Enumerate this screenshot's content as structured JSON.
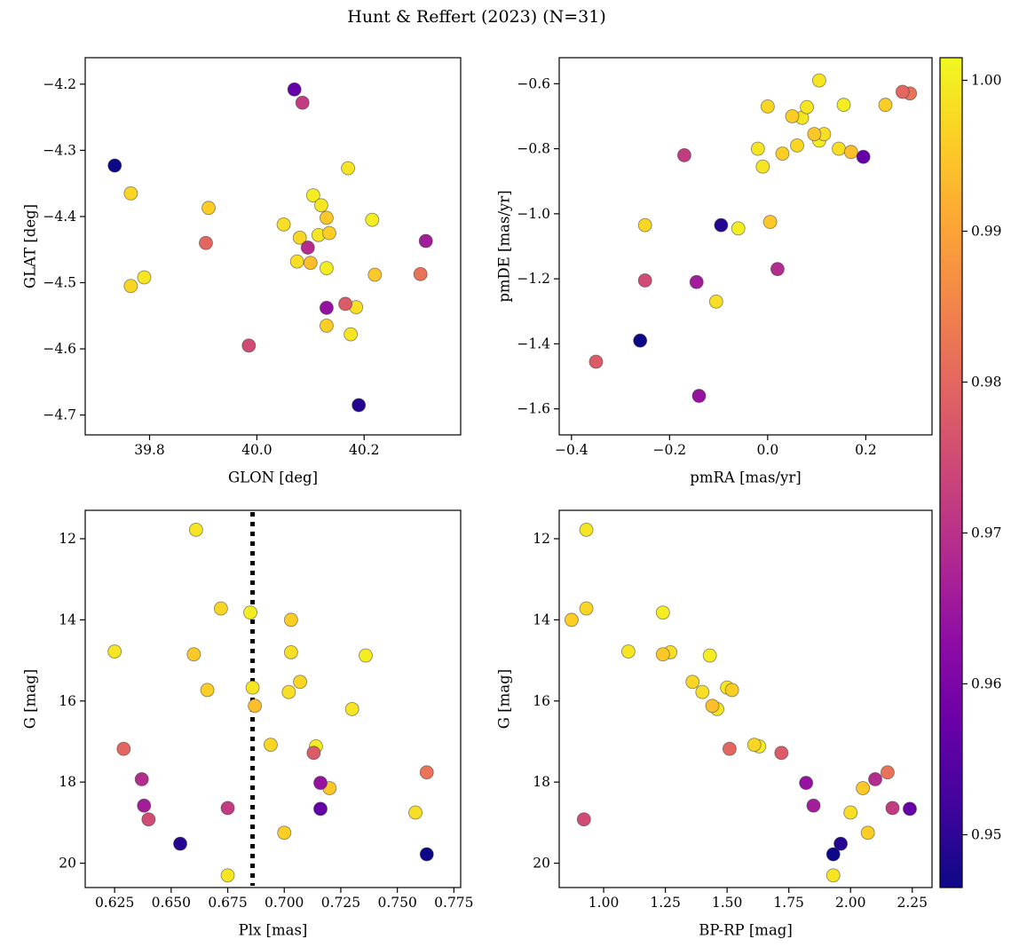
{
  "chart_data": {
    "type": "scatter",
    "title": "Hunt & Reffert (2023) (N=31)",
    "n_members": 31,
    "color_scale": {
      "colormap": "plasma",
      "vmin": 0.9465,
      "vmax": 1.0015,
      "tick_values": [
        1.0,
        0.99,
        0.98,
        0.97,
        0.96,
        0.95
      ],
      "tick_labels": [
        "1.00",
        "0.99",
        "0.98",
        "0.97",
        "0.96",
        "0.95"
      ]
    },
    "colormap_stops": [
      [
        0.0,
        "#0d0887"
      ],
      [
        0.1,
        "#41049d"
      ],
      [
        0.2,
        "#6a00a8"
      ],
      [
        0.3,
        "#8f0da4"
      ],
      [
        0.4,
        "#b12a90"
      ],
      [
        0.5,
        "#cc4778"
      ],
      [
        0.6,
        "#e16462"
      ],
      [
        0.7,
        "#f2844b"
      ],
      [
        0.8,
        "#fca636"
      ],
      [
        0.9,
        "#fcce25"
      ],
      [
        1.0,
        "#f0f921"
      ]
    ],
    "panels": [
      {
        "id": "glat-vs-glon",
        "xlabel": "GLON [deg]",
        "ylabel": "GLAT [deg]",
        "xkey": "glon",
        "ykey": "glat",
        "xlim": [
          39.68,
          40.38
        ],
        "ylim": [
          -4.16,
          -4.73
        ],
        "xticks": [
          39.8,
          40.0,
          40.2
        ],
        "xtick_labels": [
          "39.8",
          "40.0",
          "40.2"
        ],
        "yticks": [
          -4.2,
          -4.3,
          -4.4,
          -4.5,
          -4.6,
          -4.7
        ],
        "ytick_labels": [
          "−4.2",
          "−4.3",
          "−4.4",
          "−4.5",
          "−4.6",
          "−4.7"
        ]
      },
      {
        "id": "pmde-vs-pmra",
        "xlabel": "pmRA [mas/yr]",
        "ylabel": "pmDE [mas/yr]",
        "xkey": "pmra",
        "ykey": "pmde",
        "xlim": [
          -0.425,
          0.335
        ],
        "ylim": [
          -0.52,
          -1.68
        ],
        "xticks": [
          -0.4,
          -0.2,
          0.0,
          0.2
        ],
        "xtick_labels": [
          "−0.4",
          "−0.2",
          "0.0",
          "0.2"
        ],
        "yticks": [
          -0.6,
          -0.8,
          -1.0,
          -1.2,
          -1.4,
          -1.6
        ],
        "ytick_labels": [
          "−0.6",
          "−0.8",
          "−1.0",
          "−1.2",
          "−1.4",
          "−1.6"
        ]
      },
      {
        "id": "g-vs-plx",
        "xlabel": "Plx [mas]",
        "ylabel": "G [mag]",
        "xkey": "plx",
        "ykey": "g",
        "xlim": [
          0.612,
          0.778
        ],
        "ylim": [
          11.3,
          20.6
        ],
        "xticks": [
          0.625,
          0.65,
          0.675,
          0.7,
          0.725,
          0.75,
          0.775
        ],
        "xtick_labels": [
          "0.625",
          "0.650",
          "0.675",
          "0.700",
          "0.725",
          "0.750",
          "0.775"
        ],
        "yticks": [
          12,
          14,
          16,
          18,
          20
        ],
        "ytick_labels": [
          "12",
          "14",
          "16",
          "18",
          "20"
        ],
        "vline_x": 0.686,
        "vline_style": "dotted-black"
      },
      {
        "id": "g-vs-bprp",
        "xlabel": "BP-RP [mag]",
        "ylabel": "G [mag]",
        "xkey": "bprp",
        "ykey": "g",
        "xlim": [
          0.82,
          2.33
        ],
        "ylim": [
          11.3,
          20.6
        ],
        "xticks": [
          1.0,
          1.25,
          1.5,
          1.75,
          2.0,
          2.25
        ],
        "xtick_labels": [
          "1.00",
          "1.25",
          "1.50",
          "1.75",
          "2.00",
          "2.25"
        ],
        "yticks": [
          12,
          14,
          16,
          18,
          20
        ],
        "ytick_labels": [
          "12",
          "14",
          "16",
          "18",
          "20"
        ]
      }
    ],
    "stars": [
      {
        "glon": 39.735,
        "glat": -4.323,
        "pmra": -0.26,
        "pmde": -1.39,
        "plx": 0.763,
        "g": 19.78,
        "bprp": 1.93,
        "p": 0.945
      },
      {
        "glon": 40.19,
        "glat": -4.685,
        "pmra": -0.095,
        "pmde": -1.035,
        "plx": 0.654,
        "g": 19.52,
        "bprp": 1.96,
        "p": 0.949
      },
      {
        "glon": 40.07,
        "glat": -4.208,
        "pmra": 0.195,
        "pmde": -0.825,
        "plx": 0.716,
        "g": 18.66,
        "bprp": 2.24,
        "p": 0.957
      },
      {
        "glon": 40.13,
        "glat": -4.538,
        "pmra": -0.14,
        "pmde": -1.56,
        "plx": 0.716,
        "g": 18.02,
        "bprp": 1.82,
        "p": 0.964
      },
      {
        "glon": 40.315,
        "glat": -4.437,
        "pmra": -0.145,
        "pmde": -1.21,
        "plx": 0.638,
        "g": 18.58,
        "bprp": 1.85,
        "p": 0.966
      },
      {
        "glon": 40.095,
        "glat": -4.447,
        "pmra": 0.02,
        "pmde": -1.17,
        "plx": 0.637,
        "g": 17.93,
        "bprp": 2.1,
        "p": 0.969
      },
      {
        "glon": 40.085,
        "glat": -4.228,
        "pmra": -0.17,
        "pmde": -0.82,
        "plx": 0.675,
        "g": 18.64,
        "bprp": 2.17,
        "p": 0.972
      },
      {
        "glon": 39.985,
        "glat": -4.595,
        "pmra": -0.25,
        "pmde": -1.205,
        "plx": 0.64,
        "g": 18.92,
        "bprp": 0.92,
        "p": 0.975
      },
      {
        "glon": 40.165,
        "glat": -4.532,
        "pmra": -0.35,
        "pmde": -1.455,
        "plx": 0.713,
        "g": 17.28,
        "bprp": 1.72,
        "p": 0.978
      },
      {
        "glon": 39.905,
        "glat": -4.44,
        "pmra": 0.275,
        "pmde": -0.625,
        "plx": 0.629,
        "g": 17.18,
        "bprp": 1.51,
        "p": 0.98
      },
      {
        "glon": 40.305,
        "glat": -4.487,
        "pmra": 0.29,
        "pmde": -0.63,
        "plx": 0.763,
        "g": 17.76,
        "bprp": 2.15,
        "p": 0.982
      },
      {
        "glon": 40.17,
        "glat": -4.327,
        "pmra": 0.105,
        "pmde": -0.59,
        "plx": 0.661,
        "g": 11.78,
        "bprp": 0.93,
        "p": 0.999
      },
      {
        "glon": 39.765,
        "glat": -4.365,
        "pmra": 0.0,
        "pmde": -0.67,
        "plx": 0.672,
        "g": 13.72,
        "bprp": 0.93,
        "p": 0.997
      },
      {
        "glon": 40.105,
        "glat": -4.368,
        "pmra": 0.155,
        "pmde": -0.665,
        "plx": 0.685,
        "g": 13.82,
        "bprp": 1.24,
        "p": 1.0
      },
      {
        "glon": 39.91,
        "glat": -4.387,
        "pmra": 0.05,
        "pmde": -0.7,
        "plx": 0.703,
        "g": 14.0,
        "bprp": 0.87,
        "p": 0.996
      },
      {
        "glon": 40.12,
        "glat": -4.383,
        "pmra": 0.07,
        "pmde": -0.705,
        "plx": 0.625,
        "g": 14.78,
        "bprp": 1.1,
        "p": 0.999
      },
      {
        "glon": 40.13,
        "glat": -4.402,
        "pmra": 0.095,
        "pmde": -0.755,
        "plx": 0.66,
        "g": 14.85,
        "bprp": 1.24,
        "p": 0.995
      },
      {
        "glon": 40.05,
        "glat": -4.412,
        "pmra": 0.115,
        "pmde": -0.755,
        "plx": 0.703,
        "g": 14.8,
        "bprp": 1.27,
        "p": 0.998
      },
      {
        "glon": 40.215,
        "glat": -4.405,
        "pmra": 0.105,
        "pmde": -0.775,
        "plx": 0.736,
        "g": 14.88,
        "bprp": 1.43,
        "p": 1.0
      },
      {
        "glon": 40.08,
        "glat": -4.432,
        "pmra": 0.06,
        "pmde": -0.79,
        "plx": 0.707,
        "g": 15.53,
        "bprp": 1.36,
        "p": 0.997
      },
      {
        "glon": 40.115,
        "glat": -4.428,
        "pmra": -0.02,
        "pmde": -0.8,
        "plx": 0.686,
        "g": 15.67,
        "bprp": 1.5,
        "p": 0.999
      },
      {
        "glon": 40.135,
        "glat": -4.425,
        "pmra": 0.03,
        "pmde": -0.815,
        "plx": 0.666,
        "g": 15.73,
        "bprp": 1.52,
        "p": 0.996
      },
      {
        "glon": 40.075,
        "glat": -4.468,
        "pmra": 0.145,
        "pmde": -0.8,
        "plx": 0.702,
        "g": 15.78,
        "bprp": 1.4,
        "p": 0.998
      },
      {
        "glon": 40.1,
        "glat": -4.47,
        "pmra": 0.17,
        "pmde": -0.81,
        "plx": 0.687,
        "g": 16.12,
        "bprp": 1.44,
        "p": 0.994
      },
      {
        "glon": 39.79,
        "glat": -4.492,
        "pmra": -0.01,
        "pmde": -0.855,
        "plx": 0.73,
        "g": 16.2,
        "bprp": 1.46,
        "p": 0.999
      },
      {
        "glon": 39.765,
        "glat": -4.505,
        "pmra": -0.25,
        "pmde": -1.035,
        "plx": 0.694,
        "g": 17.08,
        "bprp": 1.61,
        "p": 0.997
      },
      {
        "glon": 40.13,
        "glat": -4.478,
        "pmra": -0.06,
        "pmde": -1.045,
        "plx": 0.714,
        "g": 17.12,
        "bprp": 1.63,
        "p": 1.0
      },
      {
        "glon": 40.22,
        "glat": -4.488,
        "pmra": 0.005,
        "pmde": -1.025,
        "plx": 0.72,
        "g": 18.15,
        "bprp": 2.05,
        "p": 0.995
      },
      {
        "glon": 40.185,
        "glat": -4.537,
        "pmra": -0.105,
        "pmde": -1.27,
        "plx": 0.758,
        "g": 18.75,
        "bprp": 2.0,
        "p": 0.998
      },
      {
        "glon": 40.13,
        "glat": -4.565,
        "pmra": 0.24,
        "pmde": -0.665,
        "plx": 0.7,
        "g": 19.25,
        "bprp": 2.07,
        "p": 0.996
      },
      {
        "glon": 40.175,
        "glat": -4.578,
        "pmra": 0.08,
        "pmde": -0.672,
        "plx": 0.675,
        "g": 20.3,
        "bprp": 1.93,
        "p": 0.999
      }
    ]
  }
}
